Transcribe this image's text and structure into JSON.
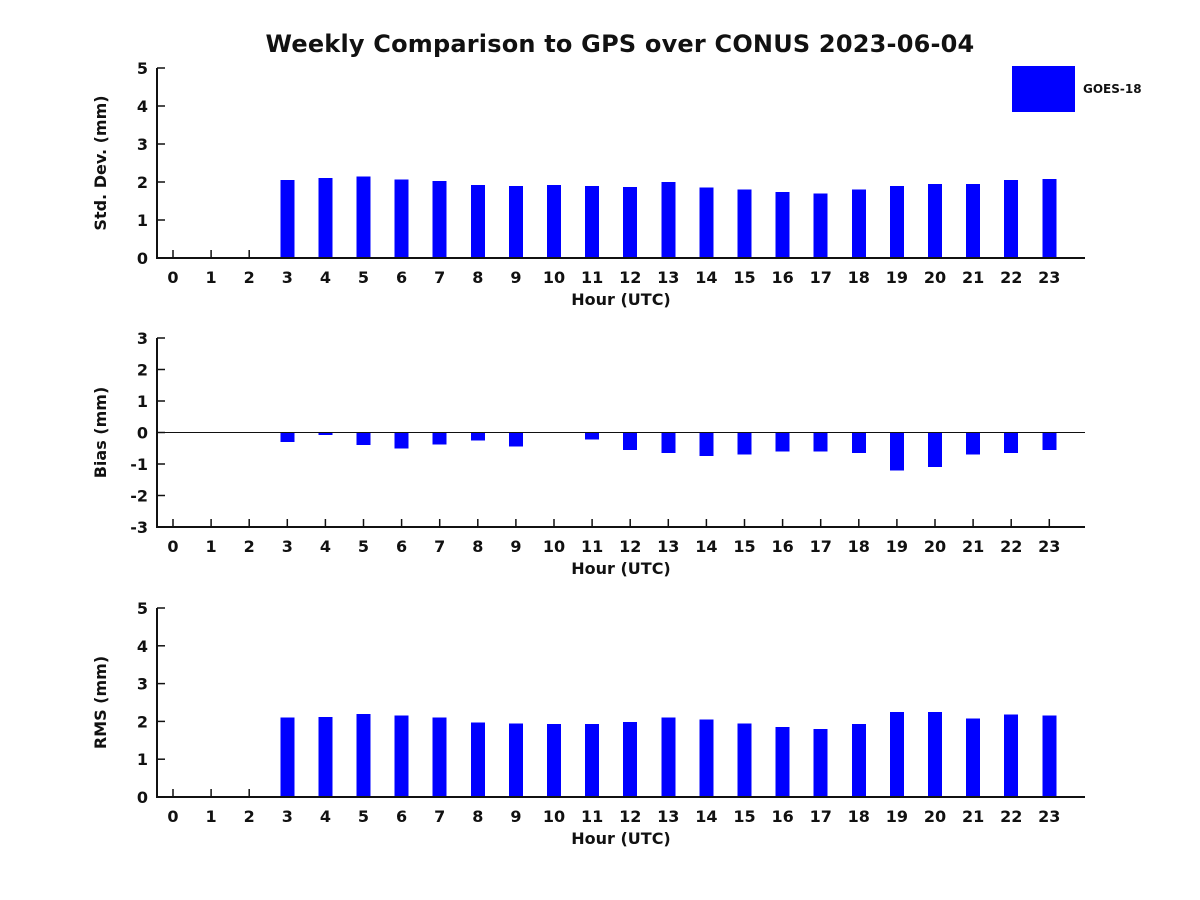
{
  "title": "Weekly Comparison to GPS over CONUS 2023-06-04",
  "legend": {
    "label": "GOES-18",
    "color": "#0000FF"
  },
  "chart_data": [
    {
      "type": "bar",
      "ylabel": "Std. Dev. (mm)",
      "xlabel": "Hour (UTC)",
      "ylim": [
        0,
        5
      ],
      "yticks": [
        0,
        1,
        2,
        3,
        4,
        5
      ],
      "grid": false,
      "legend_position": "outside upper right",
      "categories": [
        "0",
        "1",
        "2",
        "3",
        "4",
        "5",
        "6",
        "7",
        "8",
        "9",
        "10",
        "11",
        "12",
        "13",
        "14",
        "15",
        "16",
        "17",
        "18",
        "19",
        "20",
        "21",
        "22",
        "23"
      ],
      "series": [
        {
          "name": "GOES-18",
          "values": [
            0,
            0,
            0,
            2.05,
            2.1,
            2.15,
            2.07,
            2.02,
            1.92,
            1.9,
            1.92,
            1.9,
            1.87,
            2.0,
            1.85,
            1.8,
            1.74,
            1.7,
            1.8,
            1.9,
            1.95,
            1.95,
            2.05,
            2.08
          ]
        }
      ],
      "bar_color": "#0000FF"
    },
    {
      "type": "bar",
      "ylabel": "Bias (mm)",
      "xlabel": "Hour (UTC)",
      "ylim": [
        -3,
        3
      ],
      "yticks": [
        3,
        2,
        1,
        0,
        -1,
        -2,
        -3
      ],
      "grid": false,
      "zero_line": true,
      "categories": [
        "0",
        "1",
        "2",
        "3",
        "4",
        "5",
        "6",
        "7",
        "8",
        "9",
        "10",
        "11",
        "12",
        "13",
        "14",
        "15",
        "16",
        "17",
        "18",
        "19",
        "20",
        "21",
        "22",
        "23"
      ],
      "series": [
        {
          "name": "GOES-18",
          "values": [
            0,
            0,
            0,
            -0.3,
            -0.08,
            -0.4,
            -0.5,
            -0.38,
            -0.25,
            -0.45,
            0,
            -0.22,
            -0.55,
            -0.65,
            -0.75,
            -0.7,
            -0.6,
            -0.6,
            -0.65,
            -1.2,
            -1.1,
            -0.7,
            -0.65,
            -0.55
          ]
        }
      ],
      "bar_color": "#0000FF"
    },
    {
      "type": "bar",
      "ylabel": "RMS (mm)",
      "xlabel": "Hour (UTC)",
      "ylim": [
        0,
        5
      ],
      "yticks": [
        0,
        1,
        2,
        3,
        4,
        5
      ],
      "grid": false,
      "categories": [
        "0",
        "1",
        "2",
        "3",
        "4",
        "5",
        "6",
        "7",
        "8",
        "9",
        "10",
        "11",
        "12",
        "13",
        "14",
        "15",
        "16",
        "17",
        "18",
        "19",
        "20",
        "21",
        "22",
        "23"
      ],
      "series": [
        {
          "name": "GOES-18",
          "values": [
            0,
            0,
            0,
            2.1,
            2.12,
            2.2,
            2.15,
            2.1,
            1.97,
            1.95,
            1.93,
            1.93,
            1.98,
            2.1,
            2.05,
            1.95,
            1.85,
            1.8,
            1.93,
            2.25,
            2.25,
            2.08,
            2.18,
            2.15
          ]
        }
      ],
      "bar_color": "#0000FF"
    }
  ]
}
